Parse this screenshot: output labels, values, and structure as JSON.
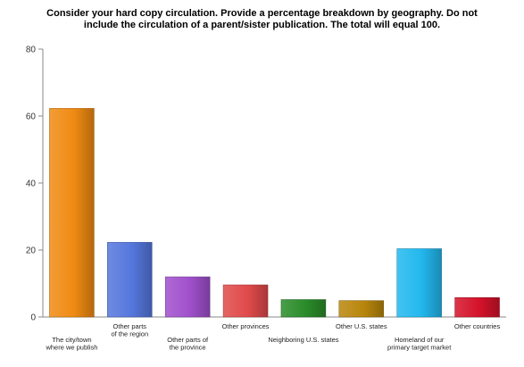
{
  "chart_data": {
    "type": "bar",
    "title_lines": [
      "Consider your hard copy circulation. Provide a percentage breakdown by geography. Do not",
      "include the circulation of a parent/sister publication. The total will equal 100."
    ],
    "categories": [
      "The city/town\nwhere we publish",
      "Other parts\nof the region",
      "Other parts of\nthe province",
      "Other provinces",
      "Neighboring U.S. states",
      "Other U.S. states",
      "Homeland of our\nprimary target market",
      "Other countries"
    ],
    "values": [
      62.3,
      22.3,
      12,
      9.6,
      5.2,
      4.9,
      20.4,
      5.8
    ],
    "colors": [
      "#f08a12",
      "#5577dd",
      "#a050cc",
      "#e04a4a",
      "#2a8c2a",
      "#b8860b",
      "#22b8ee",
      "#d4122a"
    ],
    "yticks": [
      0,
      20,
      40,
      60,
      80
    ],
    "ylim": [
      0,
      80
    ],
    "grid": false
  }
}
